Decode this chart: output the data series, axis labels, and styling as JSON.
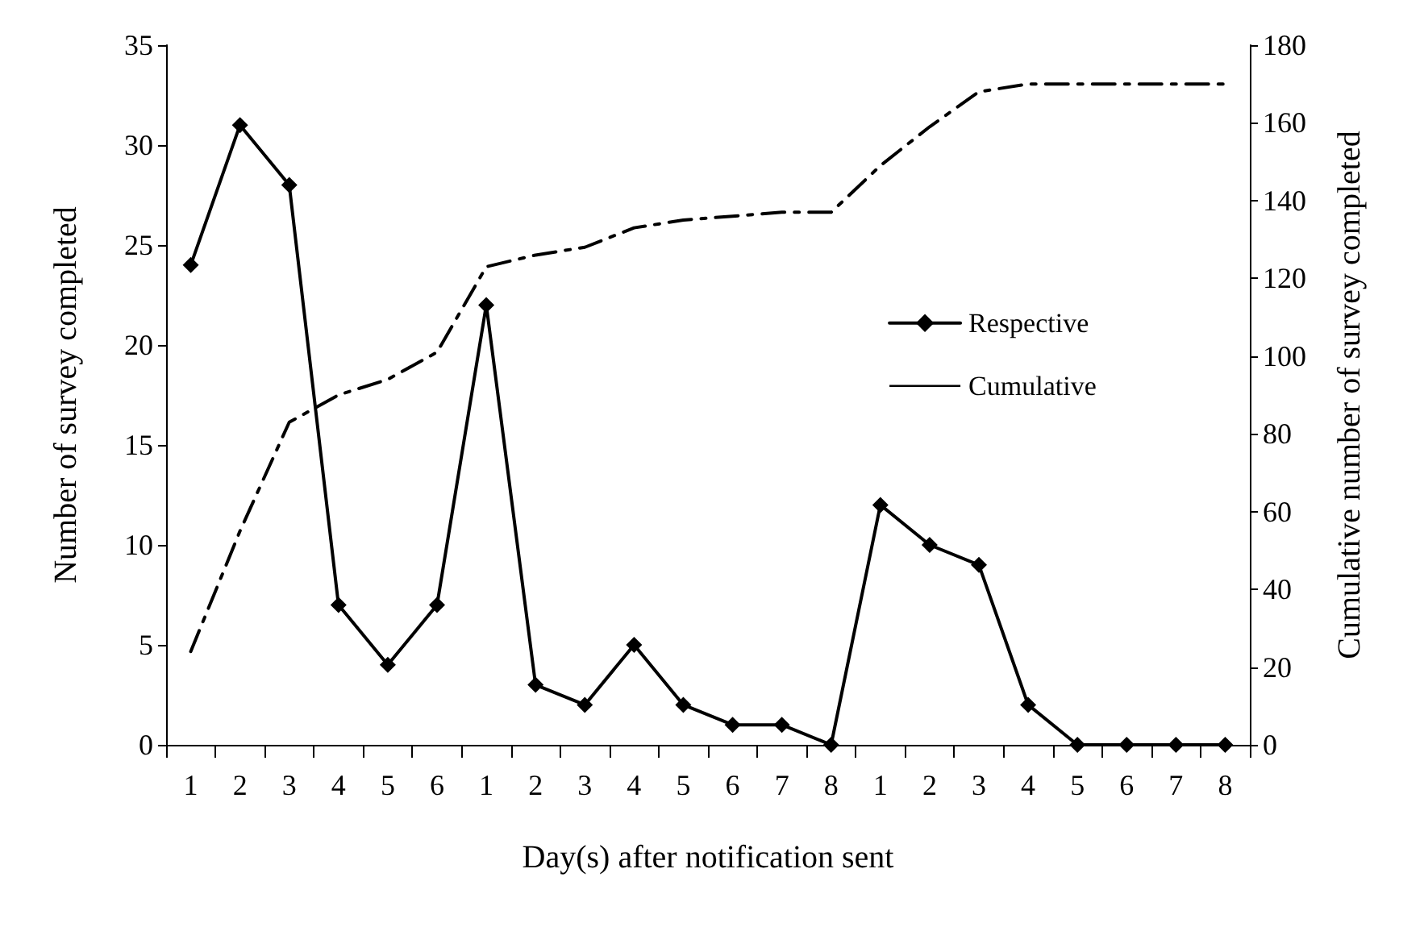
{
  "chart_data": {
    "type": "line",
    "xlabel": "Day(s) after notification sent",
    "ylabel": "Number of survey completed",
    "y2label": "Cumulative number of survey completed",
    "categories": [
      "1",
      "2",
      "3",
      "4",
      "5",
      "6",
      "1",
      "2",
      "3",
      "4",
      "5",
      "6",
      "7",
      "8",
      "1",
      "2",
      "3",
      "4",
      "5",
      "6",
      "7",
      "8"
    ],
    "series": [
      {
        "name": "Respective",
        "color": "#000000",
        "marker": "diamond",
        "line_style": "solid",
        "values": [
          24,
          31,
          28,
          7,
          4,
          7,
          22,
          3,
          2,
          5,
          2,
          1,
          1,
          0,
          12,
          10,
          9,
          2,
          0,
          0,
          0,
          0
        ]
      },
      {
        "name": "Cumulative",
        "color": "#000000",
        "marker": "none",
        "line_style": "dashdot",
        "axis": "y2",
        "values": [
          24,
          55,
          83,
          90,
          94,
          101,
          123,
          126,
          128,
          133,
          135,
          136,
          137,
          137,
          149,
          159,
          168,
          170,
          170,
          170,
          170,
          170
        ]
      }
    ],
    "ylim": [
      0,
      35
    ],
    "yticks": [
      0,
      5,
      10,
      15,
      20,
      25,
      30,
      35
    ],
    "y2lim": [
      0,
      180
    ],
    "y2ticks": [
      0,
      20,
      40,
      60,
      80,
      100,
      120,
      140,
      160,
      180
    ],
    "grid": false,
    "legend": "right"
  }
}
